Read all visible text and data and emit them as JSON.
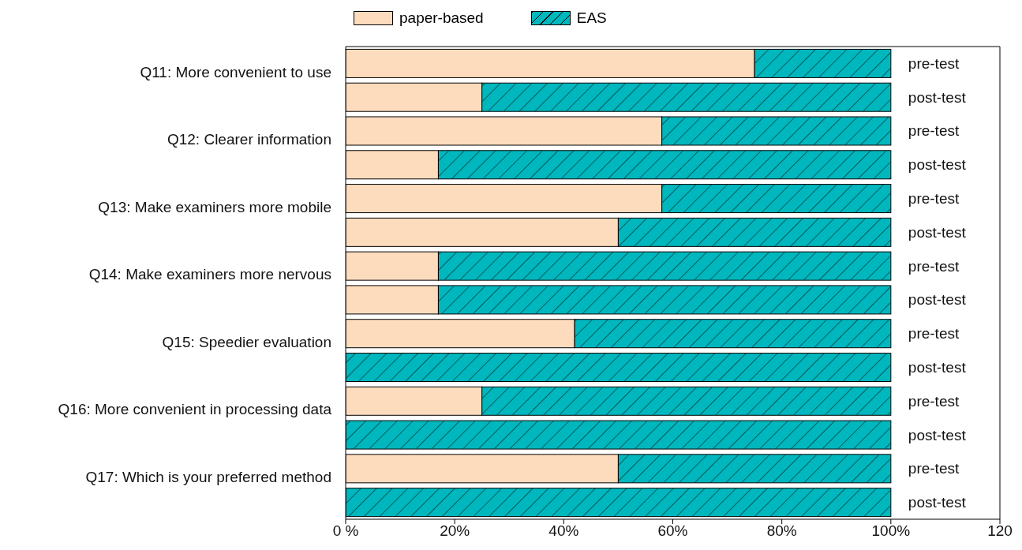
{
  "chart_data": {
    "type": "bar",
    "orientation": "horizontal",
    "stacked": true,
    "categories": [
      "Q11: More convenient to use",
      null,
      "Q12: Clearer information",
      null,
      "Q13: Make examiners more mobile",
      null,
      "Q14: Make examiners more nervous",
      null,
      "Q15: Speedier evaluation",
      null,
      "Q16: More convenient in processing data",
      null,
      "Q17: Which is your preferred method",
      null
    ],
    "y2_categories": [
      "pre-test",
      "post-test",
      "pre-test",
      "post-test",
      "pre-test",
      "post-test",
      "pre-test",
      "post-test",
      "pre-test",
      "post-test",
      "pre-test",
      "post-test",
      "pre-test",
      "post-test"
    ],
    "series": [
      {
        "name": "paper-based",
        "color": "#fddcbe",
        "values": [
          75,
          25,
          58,
          17,
          58,
          50,
          17,
          17,
          42,
          0,
          25,
          0,
          50,
          0
        ]
      },
      {
        "name": "EAS",
        "color": "#00b7be",
        "values": [
          25,
          75,
          42,
          83,
          42,
          50,
          83,
          83,
          58,
          100,
          75,
          100,
          50,
          100
        ]
      }
    ],
    "xlim": [
      0,
      120
    ],
    "xticks": [
      {
        "value": 0,
        "label": "0 %"
      },
      {
        "value": 20,
        "label": "20%"
      },
      {
        "value": 40,
        "label": "40%"
      },
      {
        "value": 60,
        "label": "60%"
      },
      {
        "value": 80,
        "label": "80%"
      },
      {
        "value": 100,
        "label": "100%"
      },
      {
        "value": 120,
        "label": "120"
      }
    ],
    "grid": false,
    "legend": "top"
  }
}
